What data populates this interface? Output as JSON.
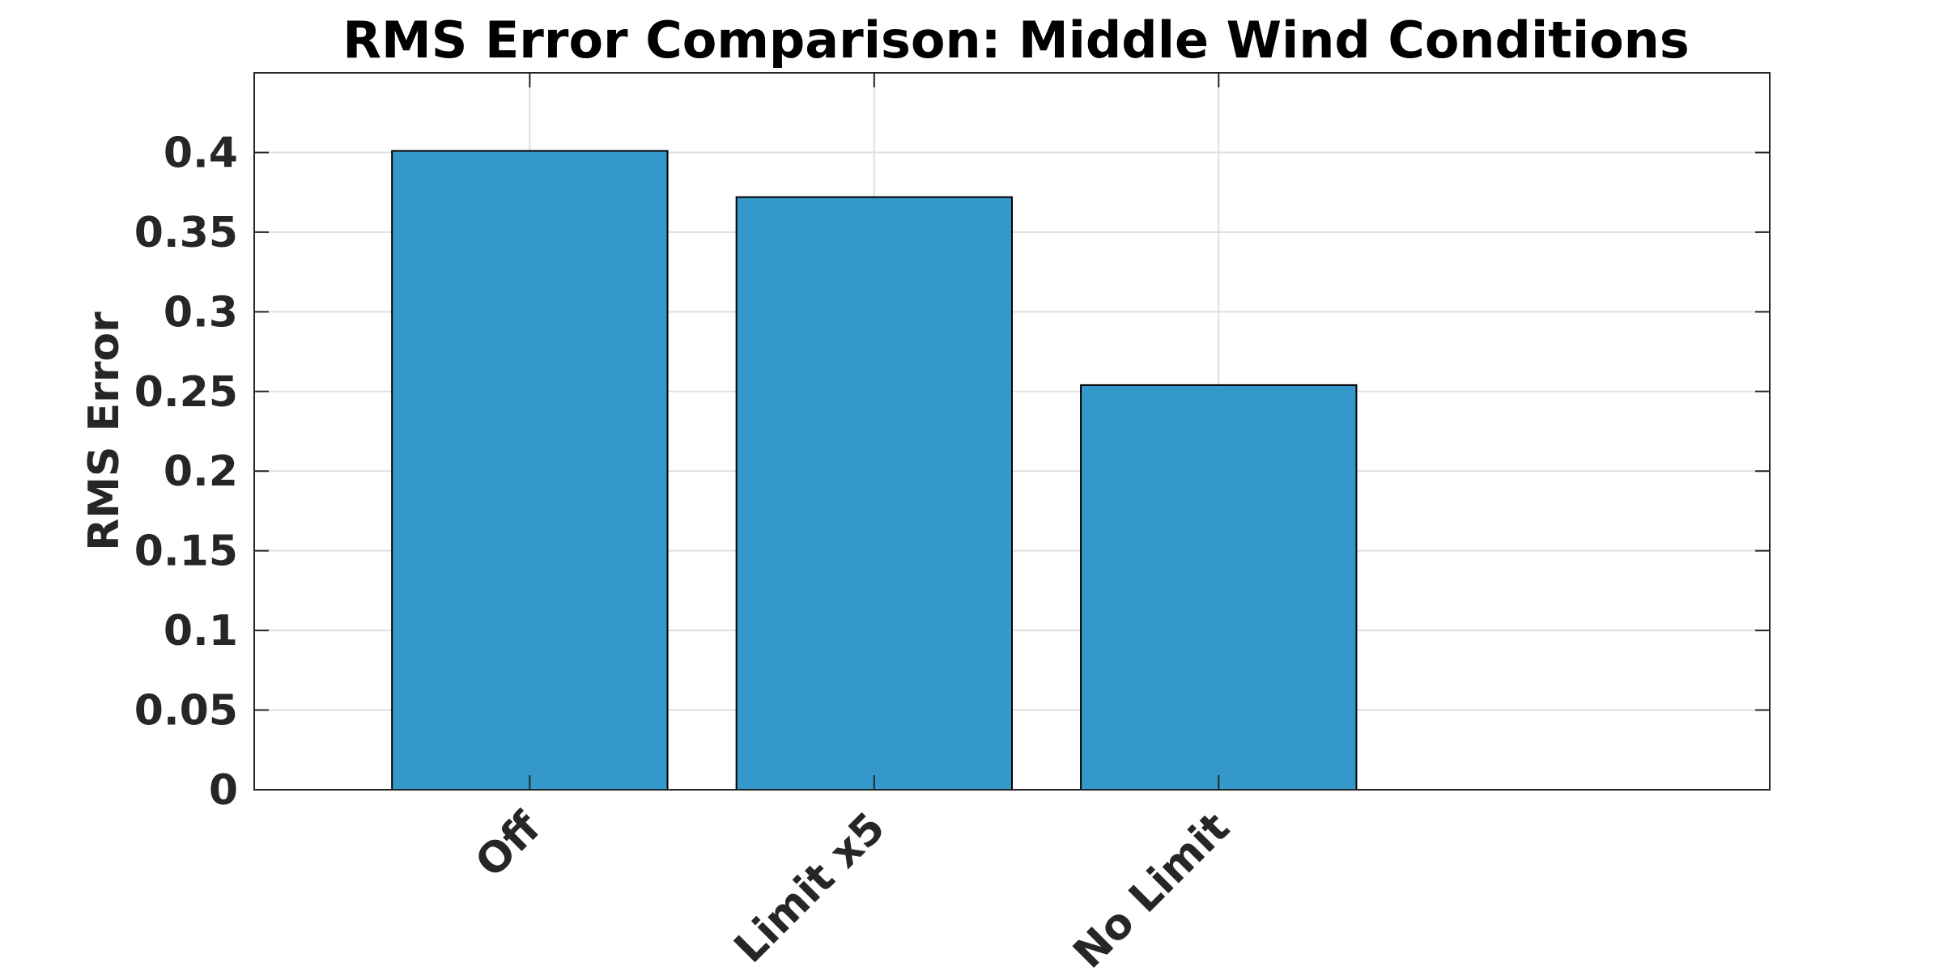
{
  "chart_data": {
    "type": "bar",
    "title": "RMS Error Comparison: Middle Wind Conditions",
    "xlabel": "",
    "ylabel": "RMS Error",
    "categories": [
      "Off",
      "Limit x5",
      "No Limit"
    ],
    "values": [
      0.401,
      0.372,
      0.254
    ],
    "ylim": [
      0,
      0.45
    ],
    "xlim": [
      0.2,
      4.6
    ],
    "yticks": [
      "0",
      "0.05",
      "0.1",
      "0.15",
      "0.2",
      "0.25",
      "0.3",
      "0.35",
      "0.4"
    ],
    "grid": true,
    "legend": "none",
    "colors": {
      "bar": "#3498cb",
      "bar_edge": "#000000",
      "grid": "#dfdfdf",
      "axis": "#262626"
    }
  }
}
